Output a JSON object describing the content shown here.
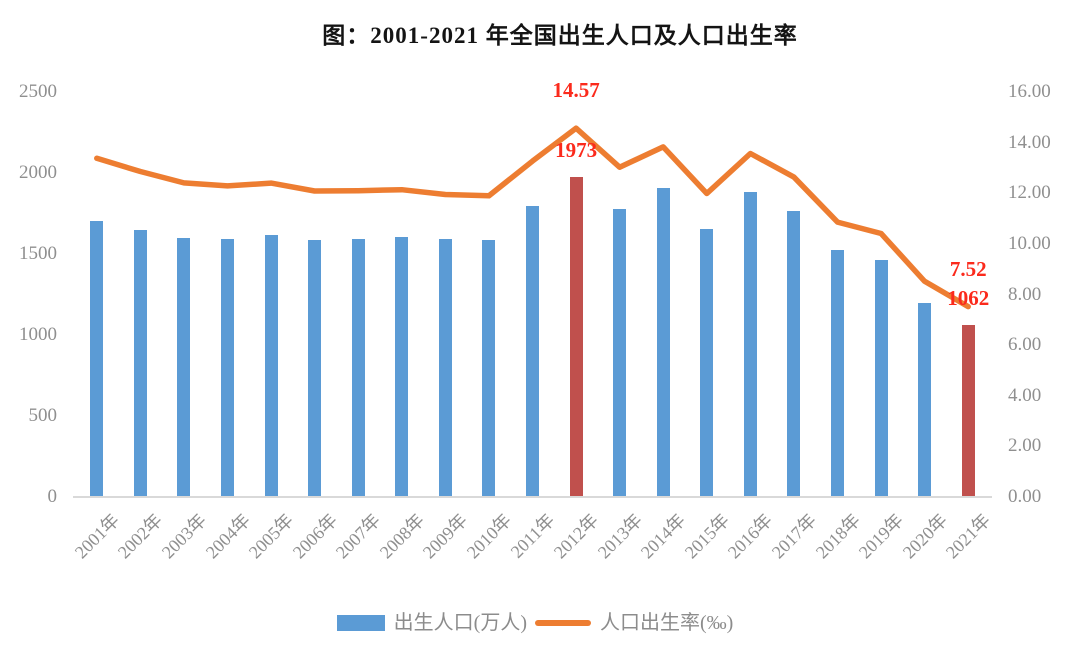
{
  "title": "图：2001-2021 年全国出生人口及人口出生率",
  "chart_data": {
    "type": "bar+line combo",
    "title": "图：2001-2021 年全国出生人口及人口出生率",
    "categories": [
      "2001年",
      "2002年",
      "2003年",
      "2004年",
      "2005年",
      "2006年",
      "2007年",
      "2008年",
      "2009年",
      "2010年",
      "2011年",
      "2012年",
      "2013年",
      "2014年",
      "2015年",
      "2016年",
      "2017年",
      "2018年",
      "2019年",
      "2020年",
      "2021年"
    ],
    "series": [
      {
        "name": "出生人口(万人)",
        "type": "bar",
        "axis": "left",
        "color": "#5b9bd5",
        "highlight_color": "#c0504d",
        "highlight_indices": [
          11,
          20
        ],
        "values": [
          1702,
          1647,
          1599,
          1593,
          1617,
          1585,
          1594,
          1608,
          1591,
          1588,
          1797,
          1973,
          1776,
          1907,
          1655,
          1883,
          1765,
          1523,
          1465,
          1200,
          1062
        ]
      },
      {
        "name": "人口出生率(‰)",
        "type": "line",
        "axis": "right",
        "color": "#ed7d31",
        "values": [
          13.38,
          12.86,
          12.41,
          12.29,
          12.4,
          12.09,
          12.1,
          12.14,
          11.95,
          11.9,
          13.27,
          14.57,
          13.03,
          13.83,
          11.99,
          13.57,
          12.64,
          10.86,
          10.41,
          8.52,
          7.52
        ]
      }
    ],
    "left_axis": {
      "min": 0,
      "max": 2500,
      "ticks": [
        "2500",
        "2000",
        "1500",
        "1000",
        "500",
        "0"
      ]
    },
    "right_axis": {
      "min": 0,
      "max": 16,
      "ticks": [
        "16.00",
        "14.00",
        "12.00",
        "10.00",
        "8.00",
        "6.00",
        "4.00",
        "2.00",
        "0.00"
      ]
    },
    "grid": "off",
    "legend_position": "bottom-center",
    "annotation_color": "#fb2a1c",
    "annotations": [
      {
        "text": "14.57",
        "category": "2012年",
        "series": "line"
      },
      {
        "text": "1973",
        "category": "2012年",
        "series": "bar"
      },
      {
        "text": "7.52",
        "category": "2021年",
        "series": "line"
      },
      {
        "text": "1062",
        "category": "2021年",
        "series": "bar"
      }
    ],
    "legend": [
      {
        "label": "出生人口(万人)",
        "swatch": "bar"
      },
      {
        "label": "人口出生率(‰)",
        "swatch": "line"
      }
    ]
  }
}
